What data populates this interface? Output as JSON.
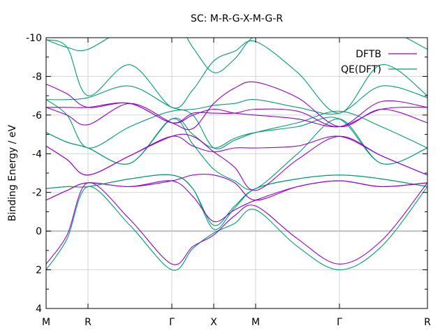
{
  "chart_data": {
    "type": "line",
    "title": "SC: M-R-G-X-M-G-R",
    "xlabel": "",
    "ylabel": "Binding Energy / eV",
    "xlim": [
      0,
      9.1
    ],
    "ylim": [
      4,
      -10
    ],
    "y_inverted": true,
    "grid": true,
    "legend_position": "top-right",
    "yticks": [
      {
        "value": -10,
        "label": "-10"
      },
      {
        "value": -8,
        "label": "-8"
      },
      {
        "value": -6,
        "label": "-6"
      },
      {
        "value": -4,
        "label": "-4"
      },
      {
        "value": -2,
        "label": "-2"
      },
      {
        "value": 0,
        "label": "0"
      },
      {
        "value": 2,
        "label": "2"
      },
      {
        "value": 4,
        "label": "4"
      }
    ],
    "kpoints": [
      {
        "label": "M",
        "x": 0.0
      },
      {
        "label": "R",
        "x": 1.0
      },
      {
        "label": "Γ",
        "x": 3.0
      },
      {
        "label": "X",
        "x": 4.0
      },
      {
        "label": "M",
        "x": 5.0
      },
      {
        "label": "Γ",
        "x": 7.0
      },
      {
        "label": "R",
        "x": 9.1
      }
    ],
    "fermi_level": 0,
    "series": [
      {
        "name": "DFTB",
        "color": "#9400d3",
        "bands": [
          [
            [
              0,
              1.7
            ],
            [
              0.5,
              0.2
            ],
            [
              1,
              -2.5
            ],
            [
              2,
              -0.6
            ],
            [
              3,
              1.7
            ],
            [
              3.5,
              0.8
            ],
            [
              4,
              0.2
            ],
            [
              4.5,
              -0.8
            ],
            [
              5,
              -1.3
            ],
            [
              6,
              0.4
            ],
            [
              7,
              1.7
            ],
            [
              8,
              0.5
            ],
            [
              9.1,
              -2.5
            ]
          ],
          [
            [
              0,
              -1.6
            ],
            [
              0.5,
              -2.1
            ],
            [
              1,
              -2.5
            ],
            [
              2,
              -2.3
            ],
            [
              3,
              -2.6
            ],
            [
              3.5,
              -1.8
            ],
            [
              4,
              -0.5
            ],
            [
              4.5,
              -1.1
            ],
            [
              5,
              -1.6
            ],
            [
              6,
              -2.3
            ],
            [
              7,
              -2.6
            ],
            [
              8,
              -2.3
            ],
            [
              9.1,
              -2.5
            ]
          ],
          [
            [
              0,
              -1.6
            ],
            [
              0.5,
              -2.1
            ],
            [
              1,
              -2.5
            ],
            [
              2,
              -2.3
            ],
            [
              3,
              -2.6
            ],
            [
              3.5,
              -2.9
            ],
            [
              4,
              -2.9
            ],
            [
              4.5,
              -2.5
            ],
            [
              5,
              -1.6
            ],
            [
              6,
              -2.3
            ],
            [
              7,
              -2.6
            ],
            [
              8,
              -2.3
            ],
            [
              9.1,
              -2.5
            ]
          ],
          [
            [
              0,
              -4.4
            ],
            [
              0.5,
              -3.7
            ],
            [
              1,
              -2.9
            ],
            [
              2,
              -3.9
            ],
            [
              3,
              -4.9
            ],
            [
              3.5,
              -4.4
            ],
            [
              4,
              -4.1
            ],
            [
              4.5,
              -4.3
            ],
            [
              5,
              -4.3
            ],
            [
              6,
              -4.4
            ],
            [
              7,
              -4.9
            ],
            [
              8,
              -3.9
            ],
            [
              9.1,
              -2.9
            ]
          ],
          [
            [
              0,
              -4.4
            ],
            [
              0.5,
              -3.7
            ],
            [
              1,
              -2.9
            ],
            [
              2,
              -3.9
            ],
            [
              3,
              -4.9
            ],
            [
              3.5,
              -4.9
            ],
            [
              4,
              -4.1
            ],
            [
              4.5,
              -3.3
            ],
            [
              5,
              -2.1
            ],
            [
              6,
              -3.7
            ],
            [
              7,
              -4.9
            ],
            [
              8,
              -3.9
            ],
            [
              9.1,
              -2.9
            ]
          ],
          [
            [
              0,
              -6.4
            ],
            [
              0.5,
              -6.4
            ],
            [
              1,
              -6.4
            ],
            [
              2,
              -6.6
            ],
            [
              3,
              -5.6
            ],
            [
              3.5,
              -6.0
            ],
            [
              4,
              -6.3
            ],
            [
              4.5,
              -6.1
            ],
            [
              5,
              -6.0
            ],
            [
              6,
              -5.8
            ],
            [
              7,
              -5.4
            ],
            [
              8,
              -6.3
            ],
            [
              9.1,
              -6.4
            ]
          ],
          [
            [
              0,
              -6.4
            ],
            [
              0.5,
              -6.0
            ],
            [
              1,
              -5.5
            ],
            [
              2,
              -6.6
            ],
            [
              3,
              -5.6
            ],
            [
              3.5,
              -5.3
            ],
            [
              4,
              -6.6
            ],
            [
              4.5,
              -7.4
            ],
            [
              5,
              -7.7
            ],
            [
              6,
              -6.9
            ],
            [
              7,
              -5.4
            ],
            [
              8,
              -6.3
            ],
            [
              9.1,
              -5.6
            ]
          ],
          [
            [
              0,
              -7.6
            ],
            [
              0.5,
              -7.1
            ],
            [
              1,
              -6.4
            ],
            [
              2,
              -6.6
            ],
            [
              3,
              -5.6
            ],
            [
              3.5,
              -6.1
            ],
            [
              4,
              -6.1
            ],
            [
              4.5,
              -6.1
            ],
            [
              5,
              -6.3
            ],
            [
              6,
              -6.2
            ],
            [
              7,
              -5.4
            ],
            [
              8,
              -6.7
            ],
            [
              9.1,
              -6.4
            ]
          ]
        ]
      },
      {
        "name": "QE(DFT)",
        "color": "#009e73",
        "bands": [
          [
            [
              0,
              2.0
            ],
            [
              0.5,
              0.4
            ],
            [
              1,
              -2.3
            ],
            [
              2,
              -0.3
            ],
            [
              3,
              2.0
            ],
            [
              3.5,
              0.9
            ],
            [
              4,
              0.1
            ],
            [
              4.5,
              -0.4
            ],
            [
              5,
              -1.1
            ],
            [
              6,
              0.8
            ],
            [
              7,
              2.0
            ],
            [
              8,
              0.8
            ],
            [
              9.1,
              -2.3
            ]
          ],
          [
            [
              0,
              -2.2
            ],
            [
              0.5,
              -2.3
            ],
            [
              1,
              -2.3
            ],
            [
              2,
              -2.7
            ],
            [
              3,
              -2.9
            ],
            [
              3.5,
              -2.2
            ],
            [
              4,
              -0.1
            ],
            [
              4.5,
              -1.2
            ],
            [
              5,
              -2.2
            ],
            [
              6,
              -2.7
            ],
            [
              7,
              -2.9
            ],
            [
              8,
              -2.7
            ],
            [
              9.1,
              -2.3
            ]
          ],
          [
            [
              0,
              -2.2
            ],
            [
              0.5,
              -2.3
            ],
            [
              1,
              -2.3
            ],
            [
              2,
              -2.7
            ],
            [
              3,
              -2.9
            ],
            [
              3.5,
              -2.2
            ],
            [
              4,
              -0.3
            ],
            [
              4.5,
              -1.3
            ],
            [
              5,
              -2.2
            ],
            [
              6,
              -2.7
            ],
            [
              7,
              -2.9
            ],
            [
              8,
              -2.7
            ],
            [
              9.1,
              -2.3
            ]
          ],
          [
            [
              0,
              -5.1
            ],
            [
              0.5,
              -4.6
            ],
            [
              1,
              -4.3
            ],
            [
              2,
              -3.5
            ],
            [
              3,
              -5.8
            ],
            [
              3.5,
              -4.5
            ],
            [
              4,
              -3.2
            ],
            [
              4.5,
              -2.6
            ],
            [
              5,
              -2.2
            ],
            [
              6,
              -4.0
            ],
            [
              7,
              -5.8
            ],
            [
              8,
              -3.5
            ],
            [
              9.1,
              -4.3
            ]
          ],
          [
            [
              0,
              -5.1
            ],
            [
              0.5,
              -4.6
            ],
            [
              1,
              -4.3
            ],
            [
              2,
              -3.5
            ],
            [
              3,
              -5.8
            ],
            [
              3.5,
              -5.0
            ],
            [
              4,
              -4.3
            ],
            [
              4.5,
              -4.8
            ],
            [
              5,
              -5.1
            ],
            [
              6,
              -5.4
            ],
            [
              7,
              -5.8
            ],
            [
              8,
              -3.5
            ],
            [
              9.1,
              -4.3
            ]
          ],
          [
            [
              0,
              -6.8
            ],
            [
              0.5,
              -6.0
            ],
            [
              1,
              -4.3
            ],
            [
              2,
              -5.4
            ],
            [
              3,
              -6.2
            ],
            [
              3.5,
              -6.0
            ],
            [
              4,
              -4.3
            ],
            [
              4.5,
              -4.7
            ],
            [
              5,
              -5.1
            ],
            [
              6,
              -5.6
            ],
            [
              7,
              -6.2
            ],
            [
              8,
              -5.4
            ],
            [
              9.1,
              -4.3
            ]
          ],
          [
            [
              0,
              -6.8
            ],
            [
              0.5,
              -6.8
            ],
            [
              1,
              -6.9
            ],
            [
              2,
              -7.5
            ],
            [
              3,
              -6.4
            ],
            [
              3.5,
              -6.3
            ],
            [
              4,
              -6.5
            ],
            [
              4.5,
              -6.6
            ],
            [
              5,
              -6.8
            ],
            [
              6,
              -6.4
            ],
            [
              7,
              -6.1
            ],
            [
              8,
              -7.5
            ],
            [
              9.1,
              -6.9
            ]
          ],
          [
            [
              0,
              -9.9
            ],
            [
              0.5,
              -9.5
            ],
            [
              1,
              -7.0
            ],
            [
              2,
              -8.6
            ],
            [
              3,
              -6.4
            ],
            [
              3.5,
              -7.3
            ],
            [
              4,
              -8.8
            ],
            [
              4.5,
              -9.3
            ],
            [
              5,
              -9.8
            ],
            [
              6,
              -8.2
            ],
            [
              7,
              -6.1
            ],
            [
              8,
              -8.6
            ],
            [
              9.1,
              -7.0
            ]
          ],
          [
            [
              0,
              -9.9
            ],
            [
              0.5,
              -9.5
            ],
            [
              1,
              -9.4
            ],
            [
              2,
              -10.6
            ],
            [
              3,
              -11.0
            ],
            [
              3.5,
              -9.5
            ],
            [
              4,
              -8.2
            ],
            [
              4.5,
              -8.9
            ],
            [
              5,
              -10.1
            ],
            [
              6,
              -10.5
            ],
            [
              7,
              -11.0
            ],
            [
              8,
              -10.6
            ],
            [
              9.1,
              -9.4
            ]
          ]
        ]
      }
    ]
  }
}
